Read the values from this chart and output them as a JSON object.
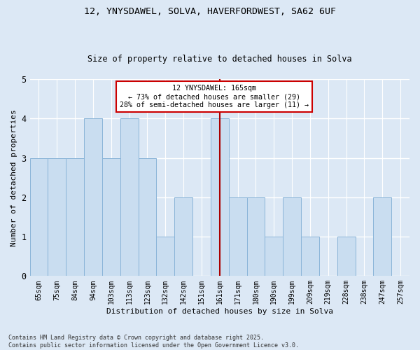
{
  "title_line1": "12, YNYSDAWEL, SOLVA, HAVERFORDWEST, SA62 6UF",
  "title_line2": "Size of property relative to detached houses in Solva",
  "xlabel": "Distribution of detached houses by size in Solva",
  "ylabel": "Number of detached properties",
  "bins": [
    "65sqm",
    "75sqm",
    "84sqm",
    "94sqm",
    "103sqm",
    "113sqm",
    "123sqm",
    "132sqm",
    "142sqm",
    "151sqm",
    "161sqm",
    "171sqm",
    "180sqm",
    "190sqm",
    "199sqm",
    "209sqm",
    "219sqm",
    "228sqm",
    "238sqm",
    "247sqm",
    "257sqm"
  ],
  "values": [
    3,
    3,
    3,
    4,
    3,
    4,
    3,
    1,
    2,
    0,
    4,
    2,
    2,
    1,
    2,
    1,
    0,
    1,
    0,
    2,
    0
  ],
  "bar_color": "#c9ddf0",
  "bar_edge_color": "#8ab4d8",
  "highlight_index": 10,
  "vline_color": "#aa0000",
  "annotation_text": "12 YNYSDAWEL: 165sqm\n← 73% of detached houses are smaller (29)\n28% of semi-detached houses are larger (11) →",
  "annotation_box_color": "#ffffff",
  "annotation_box_edge": "#cc0000",
  "ylim": [
    0,
    5
  ],
  "yticks": [
    0,
    1,
    2,
    3,
    4,
    5
  ],
  "background_color": "#dce8f5",
  "footer": "Contains HM Land Registry data © Crown copyright and database right 2025.\nContains public sector information licensed under the Open Government Licence v3.0.",
  "grid_color": "#ffffff"
}
